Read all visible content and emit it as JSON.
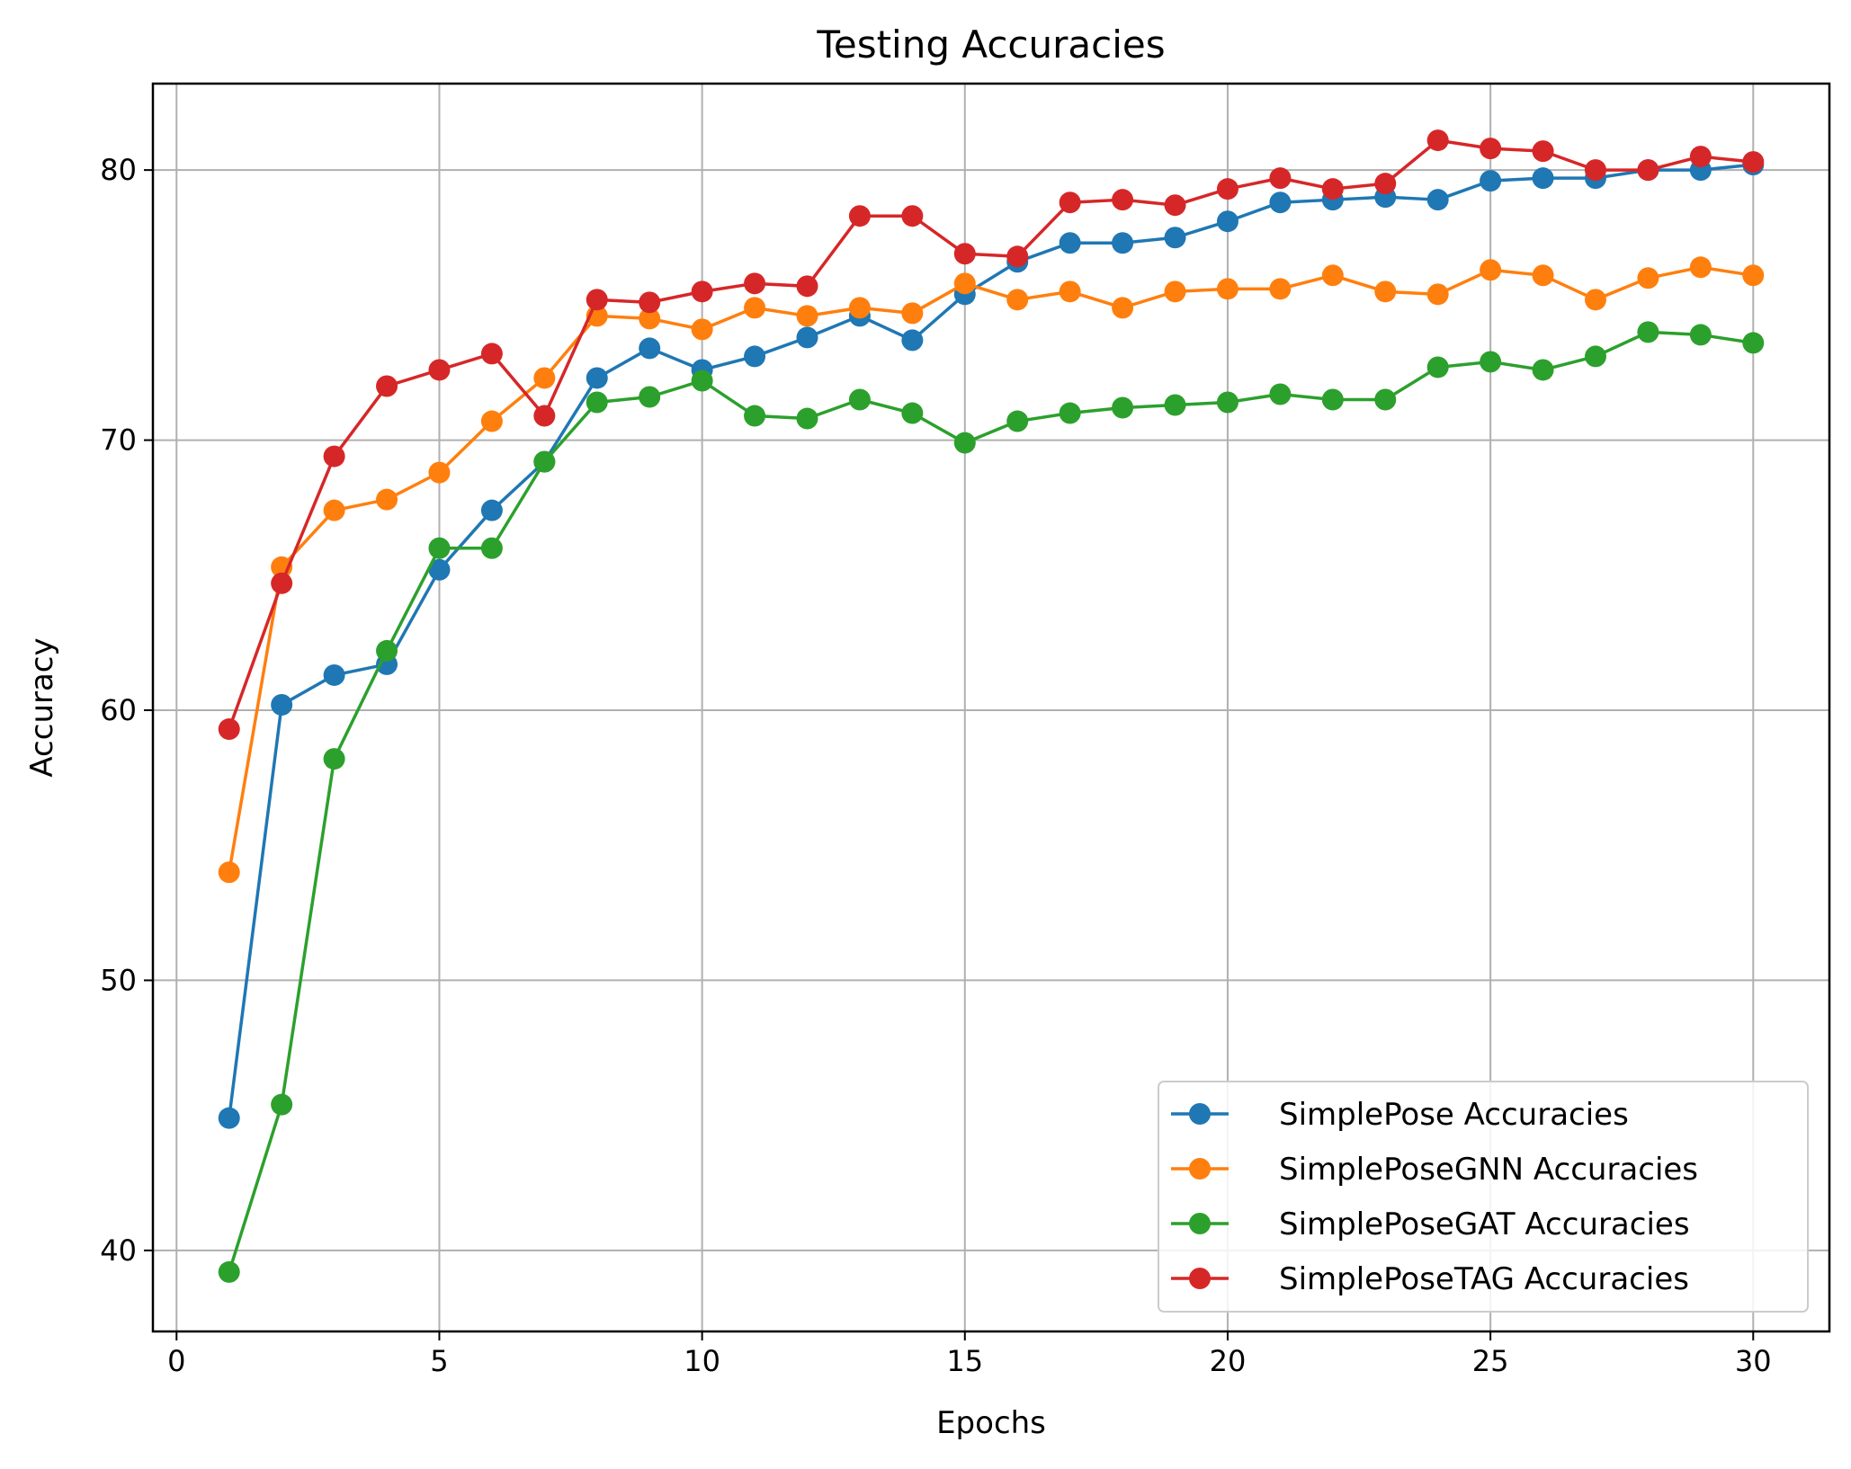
{
  "chart_data": {
    "type": "line",
    "title": "Testing Accuracies",
    "xlabel": "Epochs",
    "ylabel": "Accuracy",
    "xlim": [
      -0.45,
      31.45
    ],
    "ylim": [
      37.0,
      83.2
    ],
    "xticks": [
      0,
      5,
      10,
      15,
      20,
      25,
      30
    ],
    "yticks": [
      40,
      50,
      60,
      70,
      80
    ],
    "grid": true,
    "legend_position": "lower right",
    "x": [
      1,
      2,
      3,
      4,
      5,
      6,
      7,
      8,
      9,
      10,
      11,
      12,
      13,
      14,
      15,
      16,
      17,
      18,
      19,
      20,
      21,
      22,
      23,
      24,
      25,
      26,
      27,
      28,
      29,
      30
    ],
    "series": [
      {
        "name": "SimplePose Accuracies",
        "color": "#1f77b4",
        "values": [
          44.9,
          60.2,
          61.3,
          61.7,
          65.2,
          67.4,
          69.2,
          72.3,
          73.4,
          72.6,
          73.1,
          73.8,
          74.6,
          73.7,
          75.4,
          76.6,
          77.3,
          77.3,
          77.5,
          78.1,
          78.8,
          78.9,
          79.0,
          78.9,
          79.6,
          79.7,
          79.7,
          80.0,
          80.0,
          80.2
        ]
      },
      {
        "name": "SimplePoseGNN Accuracies",
        "color": "#ff7f0e",
        "values": [
          54.0,
          65.3,
          67.4,
          67.8,
          68.8,
          70.7,
          72.3,
          74.6,
          74.5,
          74.1,
          74.9,
          74.6,
          74.9,
          74.7,
          75.8,
          75.2,
          75.5,
          74.9,
          75.5,
          75.6,
          75.6,
          76.1,
          75.5,
          75.4,
          76.3,
          76.1,
          75.2,
          76.0,
          76.4,
          76.1
        ]
      },
      {
        "name": "SimplePoseGAT Accuracies",
        "color": "#2ca02c",
        "values": [
          39.2,
          45.4,
          58.2,
          62.2,
          66.0,
          66.0,
          69.2,
          71.4,
          71.6,
          72.2,
          70.9,
          70.8,
          71.5,
          71.0,
          69.9,
          70.7,
          71.0,
          71.2,
          71.3,
          71.4,
          71.7,
          71.5,
          71.5,
          72.7,
          72.9,
          72.6,
          73.1,
          74.0,
          73.9,
          73.6
        ]
      },
      {
        "name": "SimplePoseTAG Accuracies",
        "color": "#d62728",
        "values": [
          59.3,
          64.7,
          69.4,
          72.0,
          72.6,
          73.2,
          70.9,
          75.2,
          75.1,
          75.5,
          75.8,
          75.7,
          78.3,
          78.3,
          76.9,
          76.8,
          78.8,
          78.9,
          78.7,
          79.3,
          79.7,
          79.3,
          79.5,
          81.1,
          80.8,
          80.7,
          80.0,
          80.0,
          80.5,
          80.3
        ]
      }
    ]
  }
}
